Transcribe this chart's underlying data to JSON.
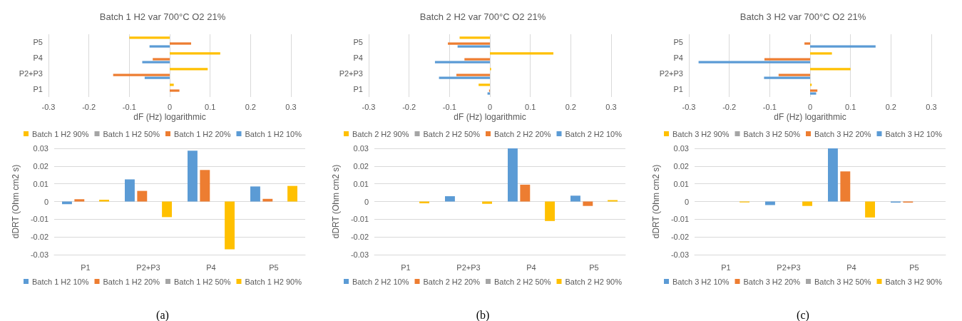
{
  "chart_data": [
    {
      "type": "bar",
      "orientation": "horizontal",
      "title": "Batch 1 H2 var 700°C O2 21%",
      "xlabel": "dF (Hz) logarithmic",
      "categories": [
        "P5",
        "P4",
        "P2+P3",
        "P1"
      ],
      "xlim": [
        -0.3,
        0.3
      ],
      "xticks": [
        -0.3,
        -0.2,
        -0.1,
        0,
        0.1,
        0.2,
        0.3
      ],
      "grid": "x",
      "legend": "bottom",
      "series": [
        {
          "name": "Batch 1 H2 90%",
          "color": "#ffc000",
          "values": [
            -0.1,
            0.125,
            0.094,
            0.01
          ]
        },
        {
          "name": "Batch 1 H2 50%",
          "color": "#a5a5a5",
          "values": [
            null,
            null,
            null,
            null
          ]
        },
        {
          "name": "Batch 1 H2 20%",
          "color": "#ed7d31",
          "values": [
            0.053,
            -0.042,
            -0.14,
            0.024
          ]
        },
        {
          "name": "Batch 1 H2 10%",
          "color": "#5b9bd5",
          "values": [
            -0.05,
            -0.068,
            -0.062,
            null
          ]
        }
      ]
    },
    {
      "type": "bar",
      "orientation": "horizontal",
      "title": "Batch 2 H2 var 700°C O2 21%",
      "xlabel": "dF (Hz) logarithmic",
      "categories": [
        "P5",
        "P4",
        "P2+P3",
        "P1"
      ],
      "xlim": [
        -0.3,
        0.3
      ],
      "xticks": [
        -0.3,
        -0.2,
        -0.1,
        0,
        0.1,
        0.2,
        0.3
      ],
      "grid": "x",
      "legend": "bottom",
      "series": [
        {
          "name": "Batch 2 H2 90%",
          "color": "#ffc000",
          "values": [
            -0.075,
            0.157,
            0.003,
            -0.028
          ]
        },
        {
          "name": "Batch 2 H2 50%",
          "color": "#a5a5a5",
          "values": [
            null,
            null,
            null,
            null
          ]
        },
        {
          "name": "Batch 2 H2 20%",
          "color": "#ed7d31",
          "values": [
            -0.104,
            -0.063,
            -0.083,
            -0.002
          ]
        },
        {
          "name": "Batch 2 H2 10%",
          "color": "#5b9bd5",
          "values": [
            -0.08,
            -0.136,
            -0.126,
            -0.006
          ]
        }
      ]
    },
    {
      "type": "bar",
      "orientation": "horizontal",
      "title": "Batch 3 H2 var 700°C O2 21%",
      "xlabel": "dF (Hz) logarithmic",
      "categories": [
        "P5",
        "P4",
        "P2+P3",
        "P1"
      ],
      "xlim": [
        -0.3,
        0.3
      ],
      "xticks": [
        -0.3,
        -0.2,
        -0.1,
        0,
        0.1,
        0.2,
        0.3
      ],
      "grid": "x",
      "legend": "bottom",
      "series": [
        {
          "name": "Batch 3 H2 90%",
          "color": "#ffc000",
          "values": [
            null,
            0.054,
            0.1,
            0.004
          ]
        },
        {
          "name": "Batch 3 H2 50%",
          "color": "#a5a5a5",
          "values": [
            null,
            null,
            null,
            null
          ]
        },
        {
          "name": "Batch 3 H2 20%",
          "color": "#ed7d31",
          "values": [
            -0.014,
            -0.113,
            -0.078,
            0.018
          ]
        },
        {
          "name": "Batch 3 H2 10%",
          "color": "#5b9bd5",
          "values": [
            0.162,
            -0.276,
            -0.114,
            0.015
          ]
        }
      ]
    },
    {
      "type": "bar",
      "ylabel": "dDRT (Ohm cm2 s)",
      "categories": [
        "P1",
        "P2+P3",
        "P4",
        "P5"
      ],
      "ylim": [
        -0.03,
        0.03
      ],
      "yticks": [
        -0.03,
        -0.02,
        -0.01,
        0,
        0.01,
        0.02,
        0.03
      ],
      "grid": "y",
      "legend": "bottom",
      "annotations": [
        "(a)"
      ],
      "series": [
        {
          "name": "Batch 1 H2 10%",
          "color": "#5b9bd5",
          "values": [
            -0.0015,
            0.0125,
            0.0287,
            0.0085
          ]
        },
        {
          "name": "Batch 1 H2 20%",
          "color": "#ed7d31",
          "values": [
            0.0013,
            0.006,
            0.0178,
            0.0015
          ]
        },
        {
          "name": "Batch 1 H2 50%",
          "color": "#a5a5a5",
          "values": [
            null,
            null,
            null,
            null
          ]
        },
        {
          "name": "Batch 1 H2 90%",
          "color": "#ffc000",
          "values": [
            0.001,
            -0.0088,
            -0.027,
            0.0088
          ]
        }
      ]
    },
    {
      "type": "bar",
      "ylabel": "dDRT (Ohm cm2 s)",
      "categories": [
        "P1",
        "P2+P3",
        "P4",
        "P5"
      ],
      "ylim": [
        -0.03,
        0.03
      ],
      "yticks": [
        -0.03,
        -0.02,
        -0.01,
        0,
        0.01,
        0.02,
        0.03
      ],
      "grid": "y",
      "legend": "bottom",
      "annotations": [
        "(b)"
      ],
      "series": [
        {
          "name": "Batch 2 H2 10%",
          "color": "#5b9bd5",
          "values": [
            null,
            0.003,
            0.03,
            0.0033
          ]
        },
        {
          "name": "Batch 2 H2 20%",
          "color": "#ed7d31",
          "values": [
            null,
            null,
            0.0095,
            -0.0025
          ]
        },
        {
          "name": "Batch 2 H2 50%",
          "color": "#a5a5a5",
          "values": [
            null,
            null,
            null,
            null
          ]
        },
        {
          "name": "Batch 2 H2 90%",
          "color": "#ffc000",
          "values": [
            -0.001,
            -0.0013,
            -0.011,
            0.0008
          ]
        }
      ]
    },
    {
      "type": "bar",
      "ylabel": "dDRT (Ohm cm2 s)",
      "categories": [
        "P1",
        "P2+P3",
        "P4",
        "P5"
      ],
      "ylim": [
        -0.03,
        0.03
      ],
      "yticks": [
        -0.03,
        -0.02,
        -0.01,
        0,
        0.01,
        0.02,
        0.03
      ],
      "grid": "y",
      "legend": "bottom",
      "annotations": [
        "(c)"
      ],
      "series": [
        {
          "name": "Batch 3 H2 10%",
          "color": "#5b9bd5",
          "values": [
            null,
            -0.002,
            0.03,
            -0.0006
          ]
        },
        {
          "name": "Batch 3 H2 20%",
          "color": "#ed7d31",
          "values": [
            null,
            null,
            0.017,
            -0.0006
          ]
        },
        {
          "name": "Batch 3 H2 50%",
          "color": "#a5a5a5",
          "values": [
            null,
            null,
            null,
            null
          ]
        },
        {
          "name": "Batch 3 H2 90%",
          "color": "#ffc000",
          "values": [
            -0.0005,
            -0.0025,
            -0.009,
            null
          ]
        }
      ]
    }
  ]
}
